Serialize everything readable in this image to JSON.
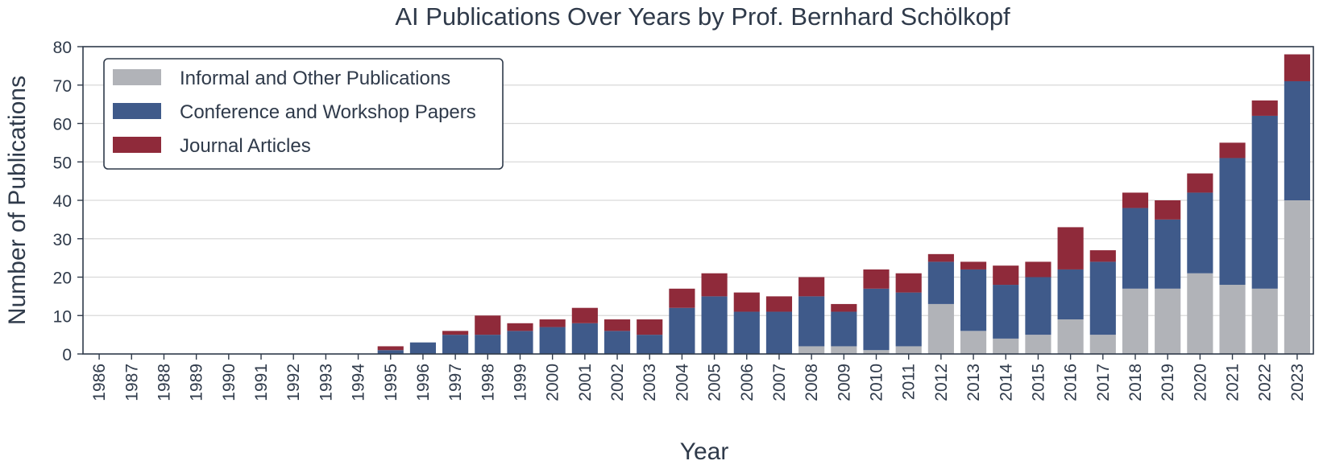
{
  "chart_data": {
    "type": "bar",
    "stacked": true,
    "title": "AI Publications Over Years by Prof. Bernhard Schölkopf",
    "xlabel": "Year",
    "ylabel": "Number of Publications",
    "ylim": [
      0,
      80
    ],
    "yticks": [
      0,
      10,
      20,
      30,
      40,
      50,
      60,
      70,
      80
    ],
    "grid": "horizontal",
    "legend_position": "top-left",
    "categories": [
      "1986",
      "1987",
      "1988",
      "1989",
      "1990",
      "1991",
      "1992",
      "1993",
      "1994",
      "1995",
      "1996",
      "1997",
      "1998",
      "1999",
      "2000",
      "2001",
      "2002",
      "2003",
      "2004",
      "2005",
      "2006",
      "2007",
      "2008",
      "2009",
      "2010",
      "2011",
      "2012",
      "2013",
      "2014",
      "2015",
      "2016",
      "2017",
      "2018",
      "2019",
      "2020",
      "2021",
      "2022",
      "2023"
    ],
    "series": [
      {
        "name": "Informal and Other Publications",
        "color": "#b1b3b8",
        "values": [
          0,
          0,
          0,
          0,
          0,
          0,
          0,
          0,
          0,
          0,
          0,
          0,
          0,
          0,
          0,
          0,
          0,
          0,
          0,
          0,
          0,
          0,
          2,
          2,
          1,
          2,
          13,
          6,
          4,
          5,
          9,
          5,
          17,
          17,
          21,
          18,
          17,
          40
        ]
      },
      {
        "name": "Conference and Workshop Papers",
        "color": "#3f5a8a",
        "values": [
          0,
          0,
          0,
          0,
          0,
          0,
          0,
          0,
          0,
          1,
          3,
          5,
          5,
          6,
          7,
          8,
          6,
          5,
          12,
          15,
          11,
          11,
          13,
          9,
          16,
          14,
          11,
          16,
          14,
          15,
          13,
          19,
          21,
          18,
          21,
          33,
          45,
          31
        ]
      },
      {
        "name": "Journal Articles",
        "color": "#8f2a3a",
        "values": [
          0,
          0,
          0,
          0,
          0,
          0,
          0,
          0,
          0,
          1,
          0,
          1,
          5,
          2,
          2,
          4,
          3,
          4,
          5,
          6,
          5,
          4,
          5,
          2,
          5,
          5,
          2,
          2,
          5,
          4,
          11,
          3,
          4,
          5,
          5,
          4,
          4,
          7
        ]
      }
    ]
  }
}
